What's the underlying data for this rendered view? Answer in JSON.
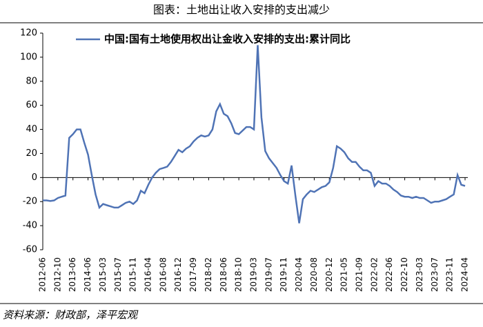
{
  "chart_data": {
    "type": "line",
    "title": "图表：土地出让收入安排的支出减少",
    "source": "资料来源：财政部，泽平宏观",
    "categories": [
      "2012-06",
      null,
      null,
      null,
      "2012-10",
      null,
      null,
      null,
      "2013-06",
      null,
      null,
      null,
      "2014-06",
      null,
      null,
      null,
      "2015-03",
      null,
      null,
      null,
      "2015-07",
      null,
      null,
      null,
      "2015-11",
      null,
      null,
      null,
      "2016-04",
      null,
      null,
      null,
      "2016-08",
      null,
      null,
      null,
      "2016-12",
      null,
      null,
      null,
      "2017-09",
      null,
      null,
      null,
      "2018-02",
      null,
      null,
      null,
      "2018-06",
      null,
      null,
      null,
      "2018-10",
      null,
      null,
      null,
      "2019-03",
      null,
      null,
      null,
      "2019-07",
      null,
      null,
      null,
      "2019-11",
      null,
      null,
      null,
      "2020-04",
      null,
      null,
      null,
      "2020-08",
      null,
      null,
      null,
      "2020-12",
      null,
      null,
      null,
      "2021-05",
      null,
      null,
      null,
      "2021-09",
      null,
      null,
      null,
      "2022-02",
      null,
      null,
      null,
      "2022-06",
      null,
      null,
      null,
      "2022-10",
      null,
      null,
      null,
      "2023-03",
      null,
      null,
      null,
      "2023-07",
      null,
      null,
      null,
      "2023-11",
      null,
      null,
      null,
      "2024-04"
    ],
    "series": [
      {
        "name": "中国:国有土地使用权出让金收入安排的支出:累计同比",
        "color": "#4f73b5",
        "values": [
          -19,
          -19,
          -19.5,
          -19,
          -17,
          -16,
          -15,
          33,
          36,
          40,
          40,
          29,
          19,
          2,
          -14,
          -25,
          -22,
          -23,
          -24,
          -25,
          -25,
          -23,
          -21,
          -20,
          -22,
          -19,
          -11,
          -13,
          -6,
          0,
          4,
          7,
          8,
          9,
          13,
          18,
          23,
          21,
          24,
          26,
          30,
          33,
          35,
          34,
          35,
          40,
          55,
          61,
          53,
          51,
          45,
          37,
          36,
          39,
          42,
          42,
          40,
          110,
          50,
          22,
          16,
          12,
          8,
          2,
          -3,
          -5,
          10,
          -15,
          -38,
          -18,
          -14,
          -11,
          -12,
          -10,
          -8,
          -7,
          -4,
          8,
          26,
          24,
          21,
          16,
          13,
          13,
          9,
          6,
          6,
          4,
          -7,
          -3,
          -5,
          -5,
          -7,
          -10,
          -12,
          -15,
          -16,
          -16,
          -17,
          -16,
          -17,
          -17,
          -19,
          -21,
          -20,
          -20,
          -19,
          -18,
          -16,
          -14,
          2,
          -6,
          -7
        ]
      }
    ],
    "ylim": [
      -60,
      120
    ],
    "yticks": [
      -60,
      -40,
      -20,
      0,
      20,
      40,
      60,
      80,
      100,
      120
    ],
    "grid": false
  }
}
